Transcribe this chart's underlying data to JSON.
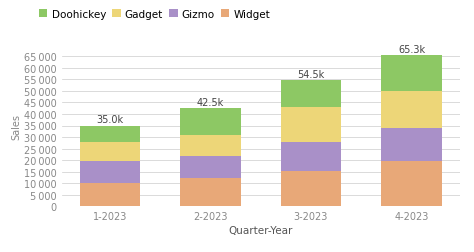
{
  "categories": [
    "1-2023",
    "2-2023",
    "3-2023",
    "4-2023"
  ],
  "series": {
    "Widget": [
      10000,
      12500,
      15500,
      19500
    ],
    "Gizmo": [
      9500,
      9500,
      12500,
      14500
    ],
    "Gadget": [
      8500,
      9000,
      15000,
      16000
    ],
    "Doohickey": [
      7000,
      11500,
      11500,
      15300
    ]
  },
  "colors": {
    "Widget": "#E8A878",
    "Gizmo": "#A990C8",
    "Gadget": "#EDD678",
    "Doohickey": "#8DC864"
  },
  "totals_labels": [
    "35.0k",
    "42.5k",
    "54.5k",
    "65.3k"
  ],
  "totals_values": [
    35000,
    42500,
    54500,
    65300
  ],
  "xlabel": "Quarter-Year",
  "ylabel": "Sales",
  "ylim": [
    0,
    70000
  ],
  "yticks": [
    0,
    5000,
    10000,
    15000,
    20000,
    25000,
    30000,
    35000,
    40000,
    45000,
    50000,
    55000,
    60000,
    65000
  ],
  "legend_order": [
    "Doohickey",
    "Gadget",
    "Gizmo",
    "Widget"
  ],
  "background_color": "#ffffff",
  "plot_bg_color": "#ffffff",
  "bar_width": 0.6,
  "label_fontsize": 7,
  "tick_fontsize": 7,
  "legend_fontsize": 7.5
}
